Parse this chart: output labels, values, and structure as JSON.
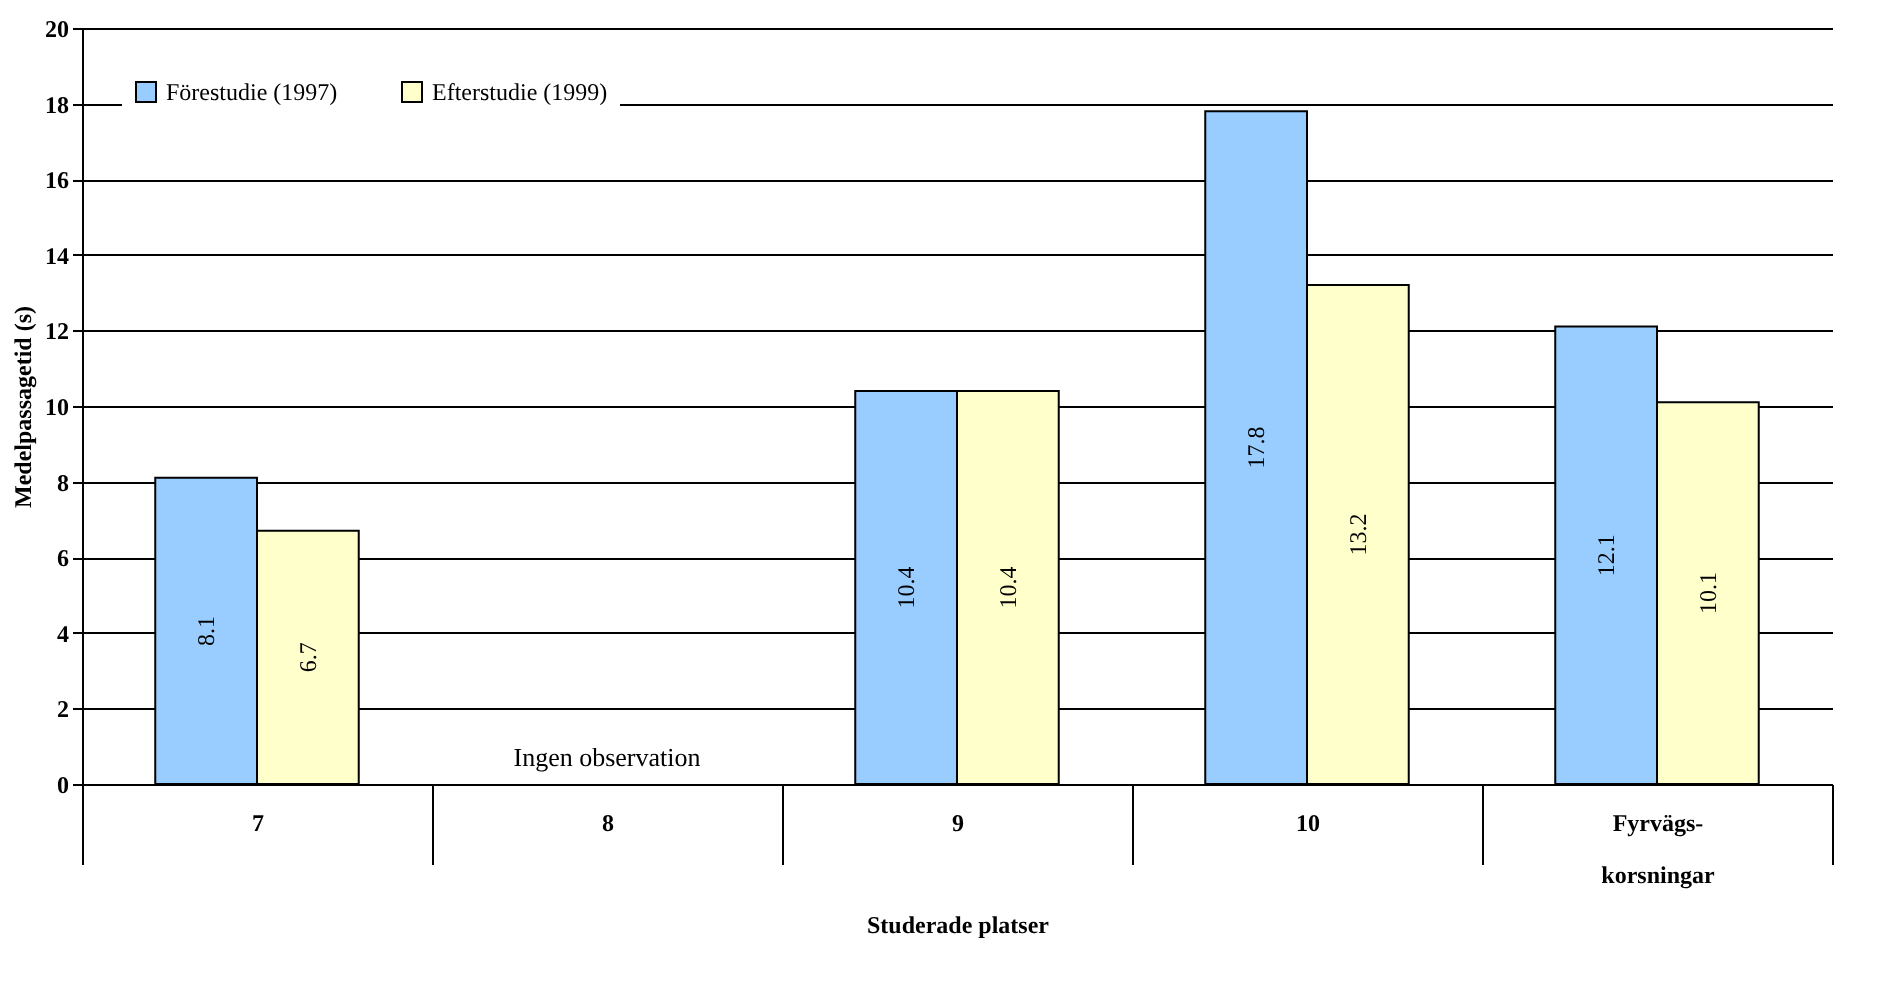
{
  "chart_data": {
    "type": "bar",
    "xlabel": "Studerade platser",
    "ylabel": "Medelpassagetid (s)",
    "categories": [
      "7",
      "8",
      "9",
      "10",
      "Fyrvägs-\nkorsningar"
    ],
    "series": [
      {
        "name": "Förestudie (1997)",
        "color": "#99ccff",
        "values": [
          8.1,
          null,
          10.4,
          17.8,
          12.1
        ]
      },
      {
        "name": "Efterstudie (1999)",
        "color": "#ffffcc",
        "values": [
          6.7,
          null,
          10.4,
          13.2,
          10.1
        ]
      }
    ],
    "ylim": [
      0,
      20
    ],
    "yticks": [
      0,
      2,
      4,
      6,
      8,
      10,
      12,
      14,
      16,
      18,
      20
    ],
    "grid": "y",
    "legend": "top left",
    "data_labels": true,
    "annotations": [
      "Ingen observation"
    ]
  }
}
